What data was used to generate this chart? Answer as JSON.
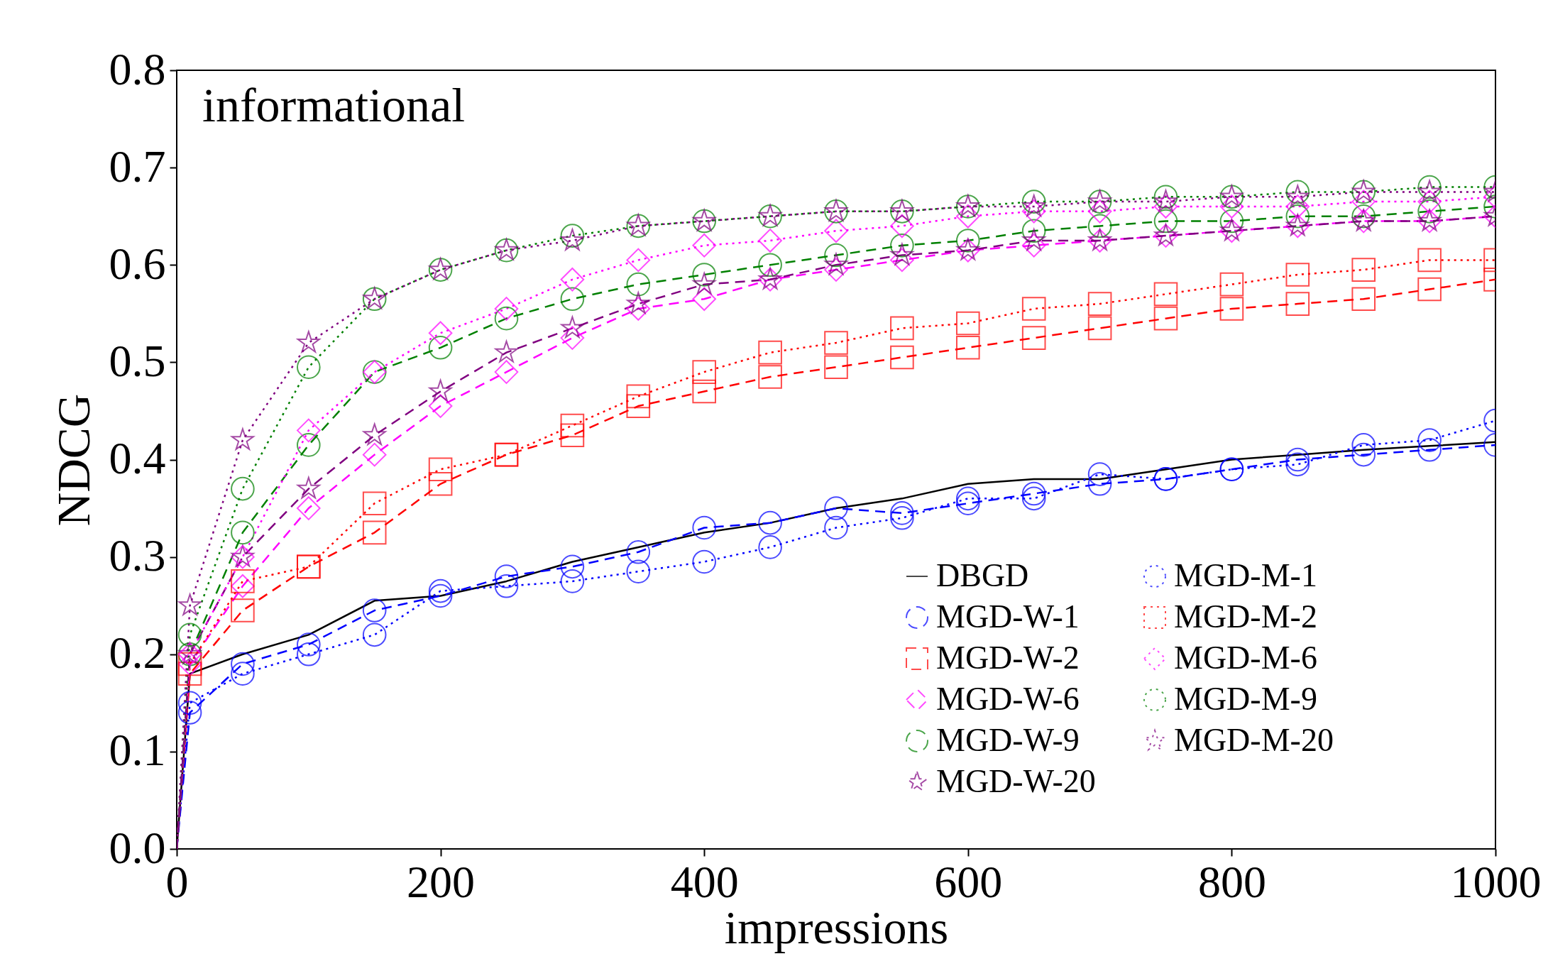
{
  "chart_data": {
    "type": "line",
    "xlabel": "impressions",
    "ylabel": "NDCG",
    "annotations": [
      "informational"
    ],
    "xlim": [
      0,
      1000
    ],
    "xticks": [
      0,
      200,
      400,
      600,
      800,
      1000
    ],
    "ylim": [
      0,
      0.8
    ],
    "yticks": [
      {
        "value": 0,
        "label": "0.0"
      },
      {
        "value": 0.1,
        "label": "0.1"
      },
      {
        "value": 0.2,
        "label": "0.2"
      },
      {
        "value": 0.3,
        "label": "0.3"
      },
      {
        "value": 0.4,
        "label": "0.4"
      },
      {
        "value": 0.5,
        "label": "0.5"
      },
      {
        "value": 0.6,
        "label": "0.6"
      },
      {
        "value": 0.7,
        "label": "0.7"
      },
      {
        "value": 0.8,
        "label": "0.8"
      }
    ],
    "grid": false,
    "legend": "bottom right",
    "x": [
      0,
      10,
      50,
      100,
      150,
      200,
      250,
      300,
      350,
      400,
      450,
      500,
      550,
      600,
      650,
      700,
      750,
      800,
      850,
      900,
      950,
      1000
    ],
    "series": [
      {
        "name": "DBGD",
        "color": "#000000",
        "line_style": "solid",
        "marker": "none",
        "values": [
          0,
          0.18,
          0.2,
          0.22,
          0.255,
          0.26,
          0.275,
          0.295,
          0.31,
          0.325,
          0.335,
          0.35,
          0.36,
          0.375,
          0.38,
          0.38,
          0.39,
          0.4,
          0.405,
          0.41,
          0.414,
          0.418
        ]
      },
      {
        "name": "MGD-W-1",
        "color": "#0000ff",
        "line_style": "dashed",
        "marker": "circle",
        "values": [
          0,
          0.14,
          0.19,
          0.21,
          0.245,
          0.26,
          0.28,
          0.29,
          0.305,
          0.33,
          0.335,
          0.35,
          0.345,
          0.355,
          0.365,
          0.375,
          0.38,
          0.39,
          0.4,
          0.405,
          0.41,
          0.415
        ]
      },
      {
        "name": "MGD-W-2",
        "color": "#ff0000",
        "line_style": "dashed",
        "marker": "square",
        "values": [
          0,
          0.18,
          0.245,
          0.29,
          0.325,
          0.375,
          0.405,
          0.425,
          0.455,
          0.47,
          0.485,
          0.495,
          0.505,
          0.515,
          0.525,
          0.535,
          0.545,
          0.555,
          0.56,
          0.565,
          0.575,
          0.585
        ]
      },
      {
        "name": "MGD-W-6",
        "color": "#ff00ff",
        "line_style": "dashed",
        "marker": "diamond",
        "values": [
          0,
          0.19,
          0.27,
          0.35,
          0.405,
          0.455,
          0.49,
          0.525,
          0.555,
          0.565,
          0.585,
          0.595,
          0.605,
          0.615,
          0.62,
          0.625,
          0.63,
          0.635,
          0.64,
          0.645,
          0.645,
          0.65
        ]
      },
      {
        "name": "MGD-W-9",
        "color": "#008000",
        "line_style": "dashed",
        "marker": "circle",
        "values": [
          0,
          0.2,
          0.325,
          0.415,
          0.49,
          0.515,
          0.545,
          0.565,
          0.58,
          0.59,
          0.6,
          0.61,
          0.62,
          0.625,
          0.635,
          0.64,
          0.645,
          0.645,
          0.65,
          0.65,
          0.655,
          0.66
        ]
      },
      {
        "name": "MGD-W-20",
        "color": "#800080",
        "line_style": "dashed",
        "marker": "star",
        "values": [
          0,
          0.2,
          0.3,
          0.37,
          0.425,
          0.47,
          0.51,
          0.535,
          0.56,
          0.58,
          0.585,
          0.6,
          0.61,
          0.615,
          0.625,
          0.625,
          0.63,
          0.635,
          0.64,
          0.645,
          0.645,
          0.65
        ]
      },
      {
        "name": "MGD-M-1",
        "color": "#0000ff",
        "line_style": "dotted",
        "marker": "circle",
        "values": [
          0,
          0.15,
          0.18,
          0.2,
          0.22,
          0.265,
          0.27,
          0.275,
          0.285,
          0.295,
          0.31,
          0.33,
          0.34,
          0.36,
          0.36,
          0.385,
          0.38,
          0.39,
          0.395,
          0.415,
          0.42,
          0.44
        ]
      },
      {
        "name": "MGD-M-2",
        "color": "#ff0000",
        "line_style": "dotted",
        "marker": "square",
        "values": [
          0,
          0.19,
          0.275,
          0.29,
          0.355,
          0.39,
          0.405,
          0.435,
          0.465,
          0.49,
          0.51,
          0.52,
          0.535,
          0.54,
          0.555,
          0.56,
          0.57,
          0.58,
          0.59,
          0.595,
          0.605,
          0.605
        ]
      },
      {
        "name": "MGD-M-6",
        "color": "#ff00ff",
        "line_style": "dotted",
        "marker": "diamond",
        "values": [
          0,
          0.2,
          0.3,
          0.43,
          0.49,
          0.53,
          0.555,
          0.585,
          0.605,
          0.62,
          0.625,
          0.635,
          0.64,
          0.65,
          0.655,
          0.655,
          0.66,
          0.66,
          0.66,
          0.665,
          0.665,
          0.67
        ]
      },
      {
        "name": "MGD-M-9",
        "color": "#008000",
        "line_style": "dotted",
        "marker": "circle",
        "values": [
          0,
          0.22,
          0.37,
          0.495,
          0.565,
          0.595,
          0.615,
          0.63,
          0.64,
          0.645,
          0.65,
          0.655,
          0.655,
          0.66,
          0.665,
          0.665,
          0.67,
          0.67,
          0.675,
          0.675,
          0.68,
          0.68
        ]
      },
      {
        "name": "MGD-M-20",
        "color": "#800080",
        "line_style": "dotted",
        "marker": "star",
        "values": [
          0,
          0.25,
          0.42,
          0.52,
          0.565,
          0.595,
          0.615,
          0.625,
          0.64,
          0.645,
          0.65,
          0.655,
          0.655,
          0.66,
          0.66,
          0.665,
          0.665,
          0.67,
          0.67,
          0.675,
          0.675,
          0.675
        ]
      }
    ]
  }
}
